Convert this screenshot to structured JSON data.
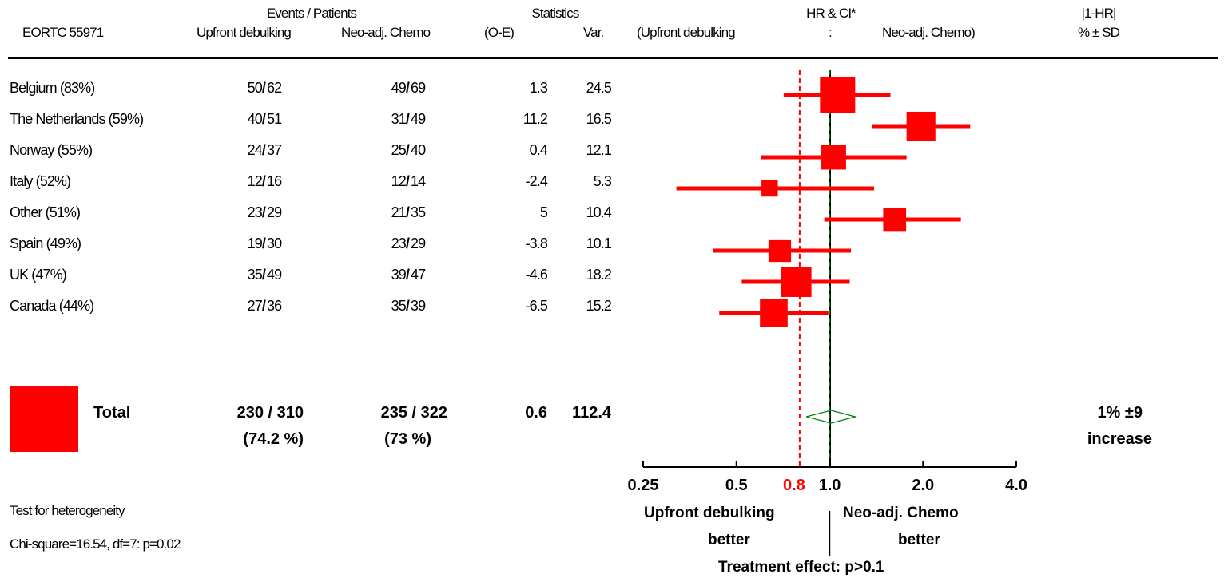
{
  "header": {
    "events_patients": "Events / Patients",
    "statistics": "Statistics",
    "hr_ci": "HR & CI*",
    "abs_hr": "|1-HR|",
    "trial": "EORTC 55971",
    "col_arm1": "Upfront debulking",
    "col_arm2": "Neo-adj. Chemo",
    "col_oe": "(O-E)",
    "col_var": "Var.",
    "hr_left": "(Upfront debulking",
    "hr_colon": ":",
    "hr_right": "Neo-adj. Chemo)",
    "pct_sd": "% ± SD"
  },
  "rows": [
    {
      "label": "Belgium (83%)",
      "e1": "50",
      "n1": "62",
      "e2": "49",
      "n2": "69",
      "oe": "1.3",
      "var": "24.5"
    },
    {
      "label": "The Netherlands (59%)",
      "e1": "40",
      "n1": "51",
      "e2": "31",
      "n2": "49",
      "oe": "11.2",
      "var": "16.5"
    },
    {
      "label": "Norway (55%)",
      "e1": "24",
      "n1": "37",
      "e2": "25",
      "n2": "40",
      "oe": "0.4",
      "var": "12.1"
    },
    {
      "label": "Italy (52%)",
      "e1": "12",
      "n1": "16",
      "e2": "12",
      "n2": "14",
      "oe": "-2.4",
      "var": "5.3"
    },
    {
      "label": "Other (51%)",
      "e1": "23",
      "n1": "29",
      "e2": "21",
      "n2": "35",
      "oe": "5",
      "var": "10.4"
    },
    {
      "label": "Spain (49%)",
      "e1": "19",
      "n1": "30",
      "e2": "23",
      "n2": "29",
      "oe": "-3.8",
      "var": "10.1"
    },
    {
      "label": "UK (47%)",
      "e1": "35",
      "n1": "49",
      "e2": "39",
      "n2": "47",
      "oe": "-4.6",
      "var": "18.2"
    },
    {
      "label": "Canada (44%)",
      "e1": "27",
      "n1": "36",
      "e2": "35",
      "n2": "39",
      "oe": "-6.5",
      "var": "15.2"
    }
  ],
  "total": {
    "label": "Total",
    "arm1": "230 / 310",
    "arm1_pct": "(74.2 %)",
    "arm2": "235 / 322",
    "arm2_pct": "(73 %)",
    "oe": "0.6",
    "var": "112.4",
    "effect": "1% ±9",
    "effect_dir": "increase"
  },
  "heterogeneity": {
    "line1": "Test for heterogeneity",
    "line2": "Chi-square=16.54, df=7: p=0.02"
  },
  "axis": {
    "left_label": "Upfront debulking",
    "right_label": "Neo-adj. Chemo",
    "better": "better",
    "treatment_effect": "Treatment effect: p>0.1"
  },
  "chart_data": {
    "type": "forest",
    "x_scale": "log",
    "xlim": [
      0.25,
      4.0
    ],
    "ticks": [
      {
        "value": 0.25,
        "label": "0.25"
      },
      {
        "value": 0.5,
        "label": "0.5"
      },
      {
        "value": 1.0,
        "label": "1.0"
      },
      {
        "value": 2.0,
        "label": "2.0"
      },
      {
        "value": 4.0,
        "label": "4.0"
      }
    ],
    "reference_hr": {
      "value": 0.8,
      "label": "0.8",
      "color": "#ff0000"
    },
    "null_line": 1.0,
    "marker_color": "#ff0000",
    "pooled_color": "#008000",
    "studies": [
      {
        "name": "Belgium",
        "hr": 1.06,
        "lo": 0.71,
        "hi": 1.57,
        "weight": 24.5
      },
      {
        "name": "The Netherlands",
        "hr": 1.97,
        "lo": 1.37,
        "hi": 2.84,
        "weight": 16.5
      },
      {
        "name": "Norway",
        "hr": 1.03,
        "lo": 0.6,
        "hi": 1.77,
        "weight": 12.1
      },
      {
        "name": "Italy",
        "hr": 0.64,
        "lo": 0.32,
        "hi": 1.39,
        "weight": 5.3
      },
      {
        "name": "Other",
        "hr": 1.62,
        "lo": 0.96,
        "hi": 2.65,
        "weight": 10.4
      },
      {
        "name": "Spain",
        "hr": 0.69,
        "lo": 0.42,
        "hi": 1.17,
        "weight": 10.1
      },
      {
        "name": "UK",
        "hr": 0.78,
        "lo": 0.52,
        "hi": 1.16,
        "weight": 18.2
      },
      {
        "name": "Canada",
        "hr": 0.66,
        "lo": 0.44,
        "hi": 0.99,
        "weight": 15.2
      }
    ],
    "pooled": {
      "hr": 1.01,
      "lo": 0.84,
      "hi": 1.21
    }
  }
}
